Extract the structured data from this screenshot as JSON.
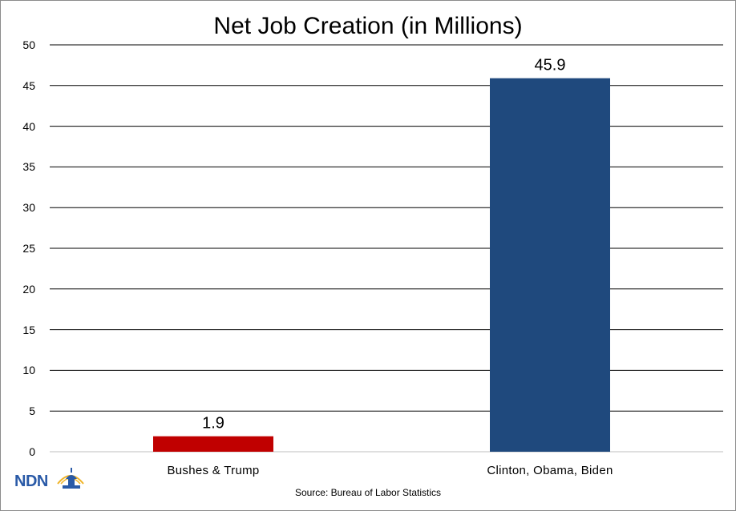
{
  "chart_data": {
    "type": "bar",
    "title": "Net Job Creation (in Millions)",
    "categories": [
      "Bushes & Trump",
      "Clinton, Obama, Biden"
    ],
    "values": [
      1.9,
      45.9
    ],
    "data_labels": [
      "1.9",
      "45.9"
    ],
    "colors": [
      "#c00000",
      "#1f497d"
    ],
    "ylim": [
      0,
      50
    ],
    "yticks": [
      "0",
      "5",
      "10",
      "15",
      "20",
      "25",
      "30",
      "35",
      "40",
      "45",
      "50"
    ],
    "grid": true,
    "legend": "none"
  },
  "source": "Source: Bureau of Labor Statistics",
  "logo": {
    "text": "NDN",
    "icon": "capitol-dome-icon",
    "color": "#2a5aa7",
    "accent": "#f0b429"
  }
}
